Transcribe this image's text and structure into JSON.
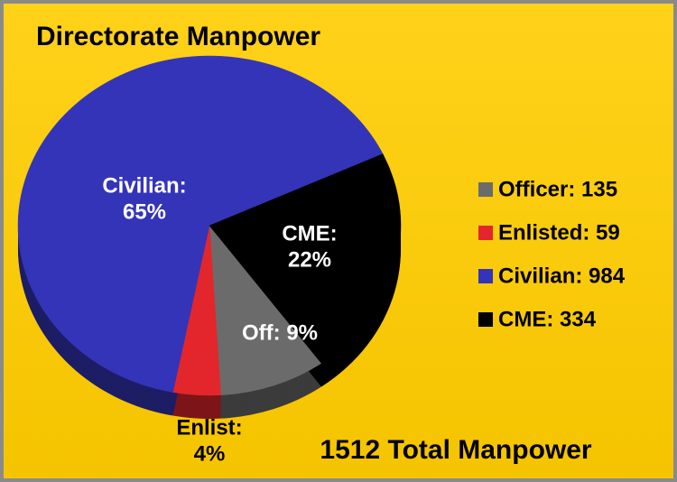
{
  "chart_data": {
    "type": "pie",
    "title": "Directorate Manpower",
    "categories": [
      "Officer: 135",
      "Enlisted: 59",
      "Civilian: 984",
      "CME: 334"
    ],
    "values": [
      9,
      4,
      65,
      22
    ],
    "value_labels": [
      "Off: 9%",
      "Enlist:\n4%",
      "Civilian:\n65%",
      "CME:\n22%"
    ],
    "colors": [
      "#6b6b6b",
      "#e3262b",
      "#3434b8",
      "#000000"
    ],
    "annotation": "1512 Total Manpower"
  }
}
